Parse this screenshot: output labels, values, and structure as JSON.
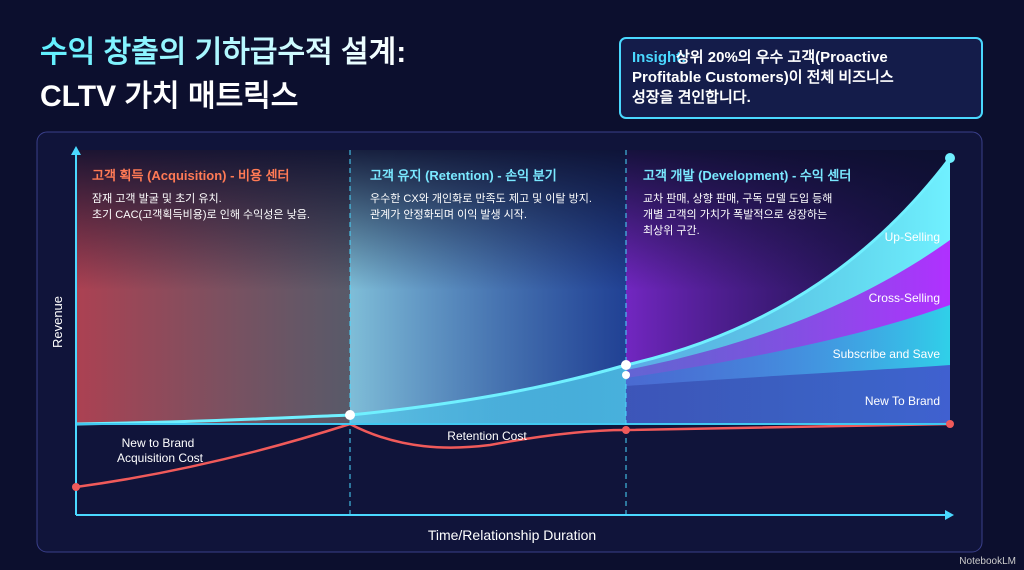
{
  "header": {
    "title_lines": [
      "수익 창출의 기하급수적 설계:",
      "CLTV 가치 매트릭스"
    ]
  },
  "insight": {
    "label": "Insight:",
    "lines": [
      "상위 20%의 우수 고객(Proactive",
      "Profitable Customers)이 전체 비즈니스",
      "성장을 견인합니다."
    ]
  },
  "axes": {
    "y_label": "Revenue",
    "x_label": "Time/Relationship Duration"
  },
  "phases": [
    {
      "title": "고객 획득 (Acquisition) - 비용 센터",
      "lines": [
        "잠재 고객 발굴 및 초기 유치.",
        "초기 CAC(고객획득비용)로 인해 수익성은 낮음."
      ]
    },
    {
      "title": "고객 유지 (Retention) - 손익 분기",
      "lines": [
        "우수한 CX와 개인화로 만족도 제고 및 이탈 방지.",
        "관계가 안정화되며 이익 발생 시작."
      ]
    },
    {
      "title": "고객 개발 (Development) - 수익 센터",
      "lines": [
        "교차 판매, 상향 판매, 구독 모델 도입 등해",
        "개별 고객의 가치가 폭발적으로 성장하는",
        "최상위 구간."
      ]
    }
  ],
  "layers": [
    "Up-Selling",
    "Cross-Selling",
    "Subscribe and Save",
    "New To Brand"
  ],
  "costs": {
    "acquisition_lines": [
      "New to Brand",
      "Acquisition Cost"
    ],
    "retention": "Retention Cost"
  },
  "footer": {
    "brand": "NotebookLM"
  }
}
